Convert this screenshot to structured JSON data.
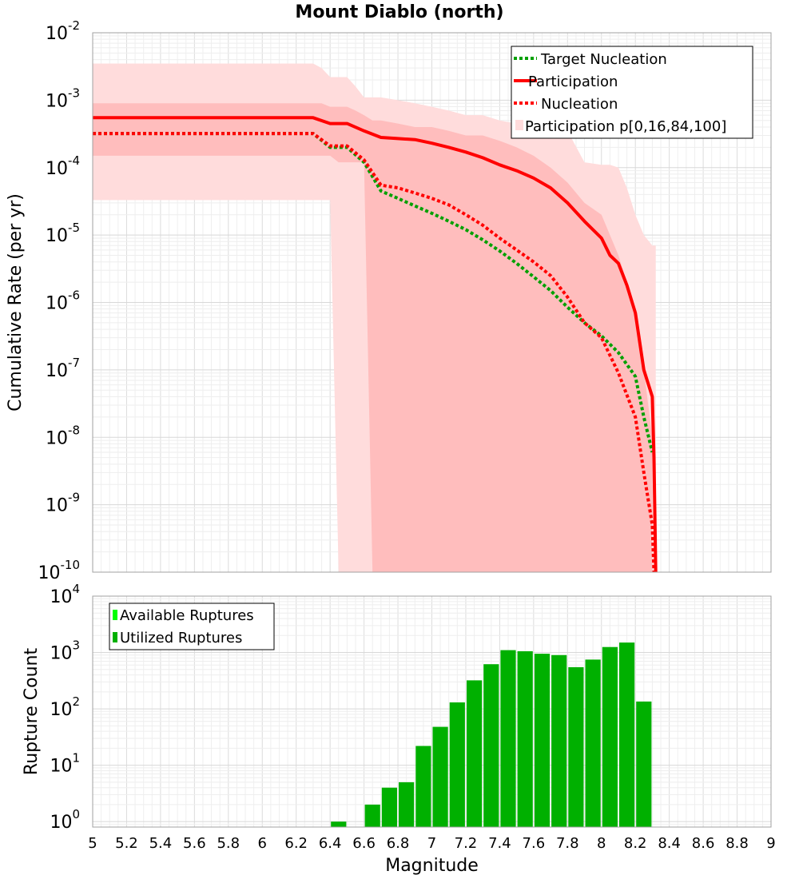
{
  "figure": {
    "title": "Mount Diablo (north)",
    "xlabel": "Magnitude",
    "xlim": [
      5,
      9
    ],
    "xticks": [
      "5",
      "5.2",
      "5.4",
      "5.6",
      "5.8",
      "6",
      "6.2",
      "6.4",
      "6.6",
      "6.8",
      "7",
      "7.2",
      "7.4",
      "7.6",
      "7.8",
      "8",
      "8.2",
      "8.4",
      "8.6",
      "8.8",
      "9"
    ]
  },
  "chart_data": [
    {
      "type": "line",
      "title": "Mount Diablo (north)",
      "ylabel": "Cumulative Rate (per yr)",
      "yscale": "log",
      "ylim": [
        1e-10,
        0.01
      ],
      "yticks": [
        {
          "base": "10",
          "exp": "-2"
        },
        {
          "base": "10",
          "exp": "-3"
        },
        {
          "base": "10",
          "exp": "-4"
        },
        {
          "base": "10",
          "exp": "-5"
        },
        {
          "base": "10",
          "exp": "-6"
        },
        {
          "base": "10",
          "exp": "-7"
        },
        {
          "base": "10",
          "exp": "-8"
        },
        {
          "base": "10",
          "exp": "-9"
        },
        {
          "base": "10",
          "exp": "-10"
        }
      ],
      "grid": true,
      "legend_position": "top-right",
      "colors": {
        "target": "#00a000",
        "red": "#ff0000",
        "band_outer": "#ffdcdc",
        "band_inner": "#ffbdbd"
      },
      "bands": {
        "name": "Participation p[0,16,84,100]",
        "outer": {
          "x": [
            5.0,
            6.3,
            6.35,
            6.4,
            6.45,
            6.5,
            6.55,
            6.6,
            6.65,
            6.7,
            6.8,
            6.9,
            7.0,
            7.1,
            7.2,
            7.3,
            7.4,
            7.5,
            7.6,
            7.7,
            7.8,
            7.9,
            8.0,
            8.05,
            8.1,
            8.15,
            8.2,
            8.25,
            8.3,
            8.32
          ],
          "upper": [
            0.0035,
            0.0035,
            0.003,
            0.0022,
            0.0022,
            0.0022,
            0.0016,
            0.0011,
            0.0011,
            0.0011,
            0.001,
            0.0009,
            0.0008,
            0.0007,
            0.0006,
            0.0006,
            0.0005,
            0.00045,
            0.0004,
            0.0004,
            0.00035,
            0.00012,
            0.00011,
            0.00011,
            0.0001,
            5e-05,
            2e-05,
            1e-05,
            7e-06,
            7e-06
          ],
          "lower": [
            3.3e-05,
            3.3e-05,
            3.3e-05,
            3.3e-05,
            1e-10,
            1e-10,
            1e-10,
            1e-10,
            1e-10,
            1e-10,
            1e-10,
            1e-10,
            1e-10,
            1e-10,
            1e-10,
            1e-10,
            1e-10,
            1e-10,
            1e-10,
            1e-10,
            1e-10,
            1e-10,
            1e-10,
            1e-10,
            1e-10,
            1e-10,
            1e-10,
            1e-10,
            1e-10,
            1e-10
          ]
        },
        "inner": {
          "x": [
            5.0,
            6.3,
            6.35,
            6.4,
            6.45,
            6.5,
            6.55,
            6.6,
            6.65,
            6.7,
            6.8,
            6.9,
            7.0,
            7.1,
            7.2,
            7.3,
            7.4,
            7.5,
            7.6,
            7.7,
            7.8,
            7.9,
            8.0,
            8.05,
            8.1,
            8.15,
            8.2,
            8.25,
            8.3
          ],
          "upper": [
            0.0009,
            0.0009,
            0.0009,
            0.0008,
            0.0008,
            0.0008,
            0.0007,
            0.0006,
            0.0005,
            0.0005,
            0.00045,
            0.0004,
            0.0004,
            0.00035,
            0.0003,
            0.0003,
            0.00025,
            0.0002,
            0.00015,
            0.0001,
            6e-05,
            3e-05,
            2e-05,
            1e-05,
            5e-06,
            2e-06,
            8e-07,
            1e-07,
            1e-08
          ],
          "lower": [
            0.00015,
            0.00015,
            0.00015,
            0.00015,
            0.00012,
            0.00012,
            0.00012,
            0.00012,
            1e-10,
            1e-10,
            1e-10,
            1e-10,
            1e-10,
            1e-10,
            1e-10,
            1e-10,
            1e-10,
            1e-10,
            1e-10,
            1e-10,
            1e-10,
            1e-10,
            1e-10,
            1e-10,
            1e-10,
            1e-10,
            1e-10,
            1e-10,
            1e-10
          ]
        }
      },
      "series": [
        {
          "name": "Target Nucleation",
          "style": "dotted",
          "color": "#00a000",
          "x": [
            5.0,
            6.3,
            6.4,
            6.5,
            6.6,
            6.7,
            6.8,
            6.9,
            7.0,
            7.1,
            7.2,
            7.3,
            7.4,
            7.5,
            7.6,
            7.7,
            7.8,
            7.9,
            8.0,
            8.1,
            8.2,
            8.25,
            8.3
          ],
          "y": [
            0.00032,
            0.00032,
            0.0002,
            0.0002,
            0.00012,
            4.5e-05,
            3.5e-05,
            2.7e-05,
            2.1e-05,
            1.6e-05,
            1.2e-05,
            8.5e-06,
            5.8e-06,
            3.8e-06,
            2.4e-06,
            1.5e-06,
            8.5e-07,
            5e-07,
            3.2e-07,
            1.8e-07,
            8e-08,
            2e-08,
            6e-09
          ]
        },
        {
          "name": "Participation",
          "style": "solid",
          "color": "#ff0000",
          "x": [
            5.0,
            6.3,
            6.4,
            6.5,
            6.6,
            6.7,
            6.8,
            6.9,
            7.0,
            7.1,
            7.2,
            7.3,
            7.4,
            7.5,
            7.6,
            7.7,
            7.8,
            7.9,
            8.0,
            8.05,
            8.1,
            8.15,
            8.2,
            8.25,
            8.3,
            8.31,
            8.32
          ],
          "y": [
            0.00055,
            0.00055,
            0.00045,
            0.00045,
            0.00035,
            0.00028,
            0.00027,
            0.00026,
            0.00023,
            0.0002,
            0.00017,
            0.00014,
            0.00011,
            9e-05,
            7e-05,
            5e-05,
            3e-05,
            1.6e-05,
            9e-06,
            5e-06,
            3.8e-06,
            1.8e-06,
            7e-07,
            1e-07,
            4e-08,
            5e-09,
            1e-10
          ]
        },
        {
          "name": "Nucleation",
          "style": "dotted",
          "color": "#ff0000",
          "x": [
            5.0,
            6.3,
            6.4,
            6.5,
            6.6,
            6.7,
            6.8,
            6.9,
            7.0,
            7.1,
            7.2,
            7.3,
            7.4,
            7.5,
            7.6,
            7.7,
            7.8,
            7.9,
            8.0,
            8.1,
            8.2,
            8.25,
            8.3,
            8.31
          ],
          "y": [
            0.00032,
            0.00032,
            0.00021,
            0.00021,
            0.00013,
            5.5e-05,
            5e-05,
            4.2e-05,
            3.5e-05,
            2.8e-05,
            2e-05,
            1.4e-05,
            9e-06,
            6e-06,
            4e-06,
            2.5e-06,
            1.2e-06,
            5e-07,
            3e-07,
            9e-08,
            2e-08,
            3e-09,
            5e-10,
            1e-10
          ]
        }
      ]
    },
    {
      "type": "bar",
      "ylabel": "Rupture Count",
      "yscale": "log",
      "ylim": [
        0.8,
        10000
      ],
      "yticks": [
        {
          "base": "10",
          "exp": "4"
        },
        {
          "base": "10",
          "exp": "3"
        },
        {
          "base": "10",
          "exp": "2"
        },
        {
          "base": "10",
          "exp": "1"
        },
        {
          "base": "10",
          "exp": "0"
        }
      ],
      "grid": true,
      "legend_position": "top-left",
      "colors": {
        "available": "#00ff00",
        "utilized": "#00b000"
      },
      "series": [
        {
          "name": "Available Ruptures",
          "color": "#00ff00"
        },
        {
          "name": "Utilized Ruptures",
          "color": "#00b000"
        }
      ],
      "bin_width": 0.1,
      "x": [
        6.45,
        6.65,
        6.75,
        6.85,
        6.95,
        7.05,
        7.15,
        7.25,
        7.35,
        7.45,
        7.55,
        7.65,
        7.75,
        7.85,
        7.95,
        8.05,
        8.15,
        8.25
      ],
      "values": [
        1,
        2,
        4,
        5,
        22,
        48,
        130,
        320,
        620,
        1100,
        1050,
        950,
        900,
        550,
        750,
        1250,
        1500,
        135
      ]
    }
  ]
}
